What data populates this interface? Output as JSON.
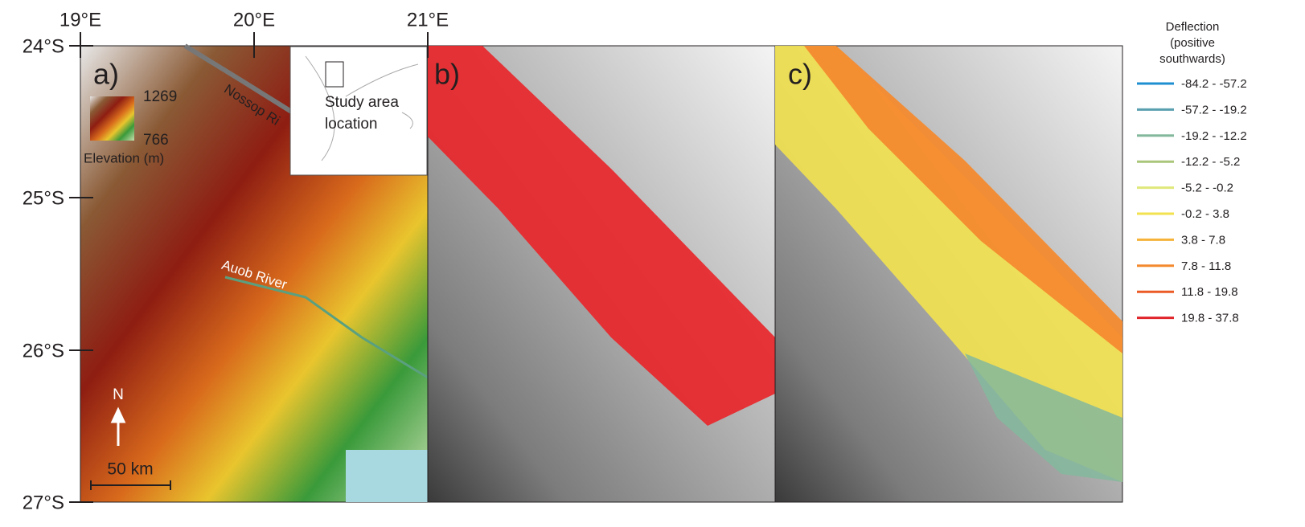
{
  "map": {
    "lon_labels": [
      "19°E",
      "20°E",
      "21°E"
    ],
    "lat_labels": [
      "24°S",
      "25°S",
      "26°S",
      "27°S"
    ],
    "panels": [
      {
        "label": "a)",
        "elevation_max": "1269",
        "elevation_min": "766",
        "elevation_title": "Elevation (m)",
        "rivers": [
          "Nossop Ri",
          "Auob River"
        ],
        "inset": [
          "Study area",
          "location"
        ],
        "north": "N",
        "scale": "50 km"
      },
      {
        "label": "b)"
      },
      {
        "label": "c)"
      }
    ],
    "legend": {
      "title": [
        "Deflection",
        "(positive",
        "southwards)"
      ],
      "items": [
        {
          "label": "-84.2 - -57.2",
          "color": "#1f8fd1"
        },
        {
          "label": "-57.2 - -19.2",
          "color": "#5a9fb0"
        },
        {
          "label": "-19.2 - -12.2",
          "color": "#84b89c"
        },
        {
          "label": "-12.2 - -5.2",
          "color": "#aac67a"
        },
        {
          "label": "-5.2 - -0.2",
          "color": "#dfe87a"
        },
        {
          "label": "-0.2 - 3.8",
          "color": "#f3e24f"
        },
        {
          "label": "3.8 - 7.8",
          "color": "#f5b33a"
        },
        {
          "label": "7.8 - 11.8",
          "color": "#f48a2f"
        },
        {
          "label": "11.8 - 19.8",
          "color": "#ec5a26"
        },
        {
          "label": "19.8 - 37.8",
          "color": "#e0242a"
        }
      ]
    }
  }
}
